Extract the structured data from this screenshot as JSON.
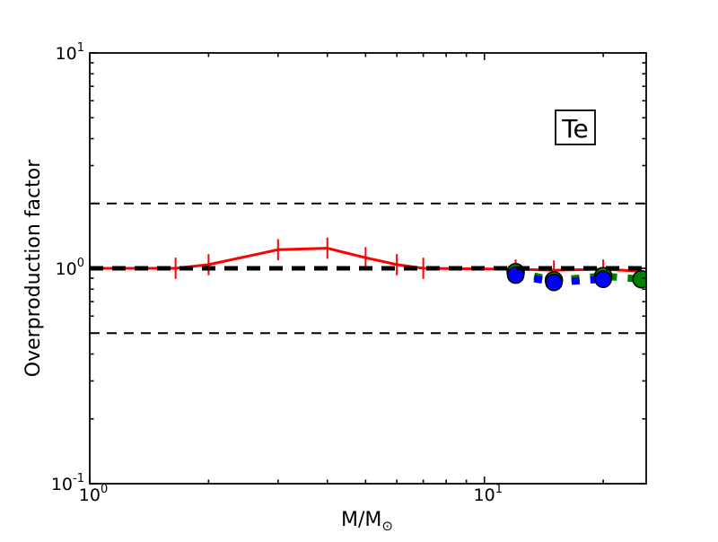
{
  "figure": {
    "background_color": "#ffffff",
    "legend": {
      "label": "Te"
    },
    "axes": {
      "ylabel": "Overproduction factor",
      "xlabel_prefix": "M/M",
      "xlabel_subscript": "⊙",
      "x_tick_labels": [
        {
          "mantissa": "10",
          "exponent": "0",
          "value": 1
        },
        {
          "mantissa": "10",
          "exponent": "1",
          "value": 10
        }
      ],
      "y_tick_labels": [
        {
          "mantissa": "10",
          "exponent": "-1",
          "value": 0.1
        },
        {
          "mantissa": "10",
          "exponent": "0",
          "value": 1
        },
        {
          "mantissa": "10",
          "exponent": "1",
          "value": 10
        }
      ]
    }
  },
  "chart_data": {
    "type": "line",
    "title": "",
    "xlabel": "M/M⊙",
    "ylabel": "Overproduction factor",
    "element_label": "Te",
    "xscale": "log",
    "yscale": "log",
    "xlim": [
      1,
      25.7
    ],
    "ylim": [
      0.1,
      10
    ],
    "grid": false,
    "legend_position": "upper right",
    "x_ticks": {
      "major": [
        1,
        10
      ],
      "minor": [
        2,
        3,
        4,
        5,
        6,
        7,
        8,
        9,
        20
      ]
    },
    "y_ticks": {
      "major": [
        0.1,
        1,
        10
      ],
      "minor": [
        0.2,
        0.3,
        0.4,
        0.5,
        0.6,
        0.7,
        0.8,
        0.9,
        2,
        3,
        4,
        5,
        6,
        7,
        8,
        9
      ]
    },
    "reference_lines": [
      {
        "y": 2.0,
        "color": "#000000",
        "style": "dashed",
        "weight": "thin"
      },
      {
        "y": 0.5,
        "color": "#000000",
        "style": "dashed",
        "weight": "thin"
      },
      {
        "y": 1.0,
        "color": "#000000",
        "style": "dashed",
        "weight": "thick"
      }
    ],
    "series": [
      {
        "name": "red-solid-errorbar-models",
        "color": "#ff0000",
        "style": "solid",
        "line_width": 3,
        "marker": "none",
        "marker_radius": 0,
        "x": [
          1.0,
          1.65,
          2,
          3,
          4,
          5,
          6,
          7,
          12,
          15,
          20,
          25
        ],
        "y": [
          1.0,
          1.0,
          1.04,
          1.22,
          1.24,
          1.12,
          1.04,
          1.0,
          0.99,
          0.98,
          0.99,
          0.97
        ],
        "yerr": [
          0.12,
          0.12,
          0.12,
          0.12,
          0.12,
          0.12,
          0.12,
          0.12,
          0.11,
          0.11,
          0.11,
          0
        ]
      },
      {
        "name": "green-dashed-circle-models",
        "color": "#008000",
        "style": "dashed",
        "line_width": 8,
        "marker": "circle",
        "marker_radius": 9.5,
        "x": [
          12,
          15,
          20,
          25
        ],
        "y": [
          0.96,
          0.88,
          0.92,
          0.89
        ],
        "yerr": []
      },
      {
        "name": "blue-dashed-circle-models",
        "color": "#0000ff",
        "style": "dashed",
        "line_width": 8,
        "marker": "circle",
        "marker_radius": 9,
        "x": [
          12,
          15,
          20
        ],
        "y": [
          0.93,
          0.86,
          0.89
        ],
        "yerr": []
      }
    ]
  }
}
